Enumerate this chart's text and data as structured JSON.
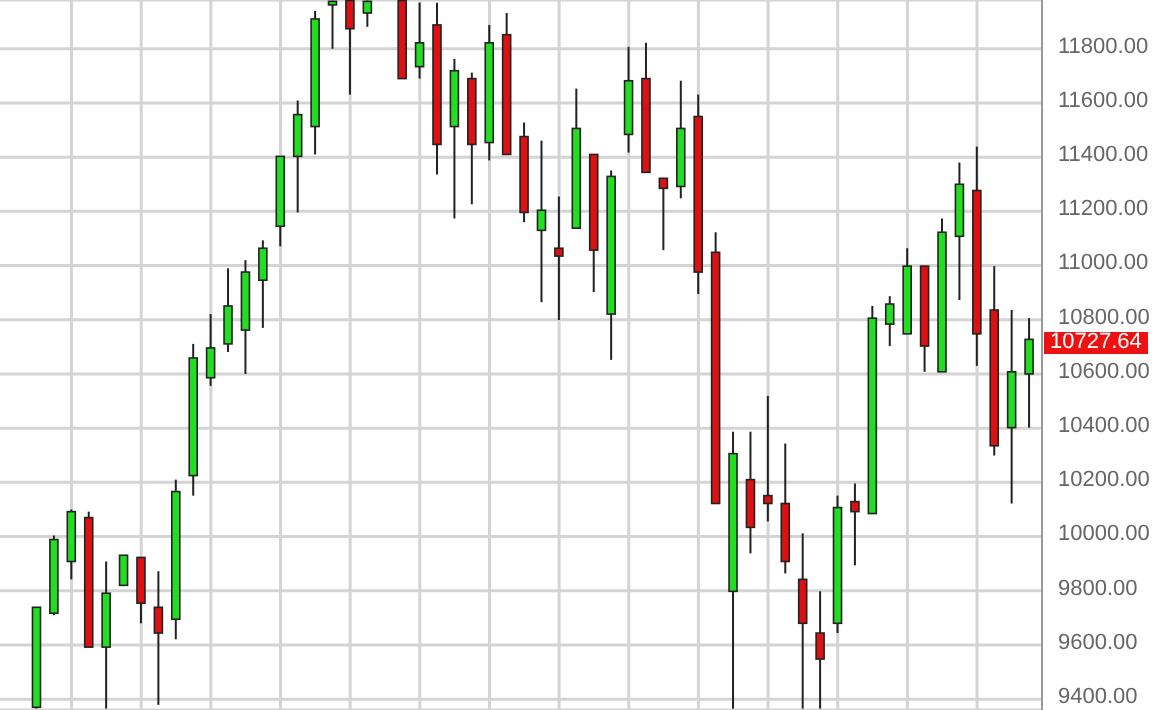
{
  "chart_data": {
    "type": "candlestick",
    "categories": [
      null,
      null,
      null,
      null,
      null,
      null,
      null,
      null,
      null,
      null,
      null,
      null,
      null,
      null,
      null,
      null,
      null,
      null,
      null,
      null,
      null,
      null,
      null,
      null,
      null,
      null,
      null,
      null,
      null,
      null,
      null,
      null,
      null,
      null,
      null,
      null,
      null,
      null,
      null,
      null,
      null,
      null,
      null,
      null,
      null,
      null,
      null,
      null,
      null,
      null,
      null,
      null,
      null,
      null,
      null,
      null,
      null,
      null
    ],
    "ohlc": [
      [
        9370,
        9739,
        9365,
        9739
      ],
      [
        9717,
        10004,
        9710,
        9989
      ],
      [
        9908,
        10100,
        9842,
        10092
      ],
      [
        10070,
        10092,
        9592,
        9592
      ],
      [
        9592,
        9908,
        9365,
        9791
      ],
      [
        9820,
        9931,
        9820,
        9931
      ],
      [
        9923,
        9923,
        9680,
        9754
      ],
      [
        9739,
        9872,
        9379,
        9644
      ],
      [
        9695,
        10210,
        9621,
        10166
      ],
      [
        10225,
        10711,
        10151,
        10659
      ],
      [
        10586,
        10821,
        10556,
        10696
      ],
      [
        10711,
        10990,
        10681,
        10851
      ],
      [
        10762,
        11020,
        10600,
        10976
      ],
      [
        10946,
        11093,
        10770,
        11064
      ],
      [
        11145,
        11403,
        11071,
        11403
      ],
      [
        11403,
        11609,
        11196,
        11557
      ],
      [
        11513,
        11940,
        11410,
        11910
      ],
      [
        11962,
        11978,
        11800,
        11975
      ],
      [
        11978,
        11978,
        11631,
        11874
      ],
      [
        11932,
        11978,
        11881,
        11975
      ],
      null,
      [
        11978,
        11978,
        11690,
        11690
      ],
      [
        11734,
        11970,
        11690,
        11822
      ],
      [
        11888,
        11970,
        11336,
        11447
      ],
      [
        11513,
        11763,
        11174,
        11719
      ],
      [
        11690,
        11712,
        11226,
        11447
      ],
      [
        11454,
        11888,
        11388,
        11822
      ],
      [
        11852,
        11932,
        11410,
        11410
      ],
      [
        11476,
        11528,
        11160,
        11196
      ],
      [
        11130,
        11461,
        10865,
        11204
      ],
      [
        11064,
        11255,
        10799,
        11035
      ],
      [
        11138,
        11653,
        11138,
        11506
      ],
      [
        11410,
        11410,
        10902,
        11057
      ],
      [
        10821,
        11351,
        10652,
        11329
      ],
      [
        11484,
        11807,
        11417,
        11682
      ],
      [
        11690,
        11822,
        11344,
        11344
      ],
      [
        11322,
        11322,
        11057,
        11285
      ],
      [
        11292,
        11682,
        11248,
        11506
      ],
      [
        11550,
        11631,
        10895,
        10976
      ],
      [
        11049,
        11123,
        10122,
        10122
      ],
      [
        9798,
        10387,
        9365,
        10306
      ],
      [
        10210,
        10387,
        9938,
        10034
      ],
      [
        10151,
        10519,
        10056,
        10122
      ],
      [
        10122,
        10343,
        9864,
        9908
      ],
      [
        9842,
        10012,
        9365,
        9680
      ],
      [
        9644,
        9798,
        9365,
        9548
      ],
      [
        9680,
        10151,
        9644,
        10107
      ],
      [
        10129,
        10196,
        9894,
        10092
      ],
      [
        10085,
        10851,
        10085,
        10806
      ],
      [
        10784,
        10887,
        10703,
        10858
      ],
      [
        10748,
        11064,
        10748,
        10998
      ],
      [
        10998,
        10998,
        10608,
        10703
      ],
      [
        10608,
        11174,
        10608,
        11123
      ],
      [
        11108,
        11380,
        10873,
        11300
      ],
      [
        11277,
        11439,
        10630,
        10748
      ],
      [
        10836,
        10998,
        10299,
        10335
      ],
      [
        10402,
        10836,
        10122,
        10608
      ],
      [
        10600,
        10806,
        10402,
        10727.64
      ]
    ],
    "colors": [
      "#22dd22",
      "#22dd22",
      "#22dd22",
      "#dd1111",
      "#22dd22",
      "#22dd22",
      "#dd1111",
      "#dd1111",
      "#22dd22",
      "#22dd22",
      "#22dd22",
      "#22dd22",
      "#22dd22",
      "#22dd22",
      "#22dd22",
      "#22dd22",
      "#22dd22",
      "#22dd22",
      "#dd1111",
      "#22dd22",
      null,
      "#dd1111",
      "#22dd22",
      "#dd1111",
      "#22dd22",
      "#dd1111",
      "#22dd22",
      "#dd1111",
      "#dd1111",
      "#22dd22",
      "#dd1111",
      "#22dd22",
      "#dd1111",
      "#22dd22",
      "#22dd22",
      "#dd1111",
      "#dd1111",
      "#22dd22",
      "#dd1111",
      "#dd1111",
      "#22dd22",
      "#dd1111",
      "#dd1111",
      "#dd1111",
      "#dd1111",
      "#dd1111",
      "#22dd22",
      "#dd1111",
      "#22dd22",
      "#22dd22",
      "#22dd22",
      "#dd1111",
      "#22dd22",
      "#22dd22",
      "#dd1111",
      "#dd1111",
      "#22dd22",
      "#22dd22"
    ],
    "ylim": [
      9360,
      11980
    ],
    "yticks": [
      {
        "value": 9400,
        "label": "9400.00"
      },
      {
        "value": 9600,
        "label": "9600.00"
      },
      {
        "value": 9800,
        "label": "9800.00"
      },
      {
        "value": 10000,
        "label": "10000.00"
      },
      {
        "value": 10200,
        "label": "10200.00"
      },
      {
        "value": 10400,
        "label": "10400.00"
      },
      {
        "value": 10600,
        "label": "10600.00"
      },
      {
        "value": 10800,
        "label": "10800.00"
      },
      {
        "value": 11000,
        "label": "11000.00"
      },
      {
        "value": 11200,
        "label": "11200.00"
      },
      {
        "value": 11400,
        "label": "11400.00"
      },
      {
        "value": 11600,
        "label": "11600.00"
      },
      {
        "value": 11800,
        "label": "11800.00"
      }
    ],
    "annotations": [
      "10727.64"
    ],
    "grid": true,
    "tick_labels": "y"
  }
}
